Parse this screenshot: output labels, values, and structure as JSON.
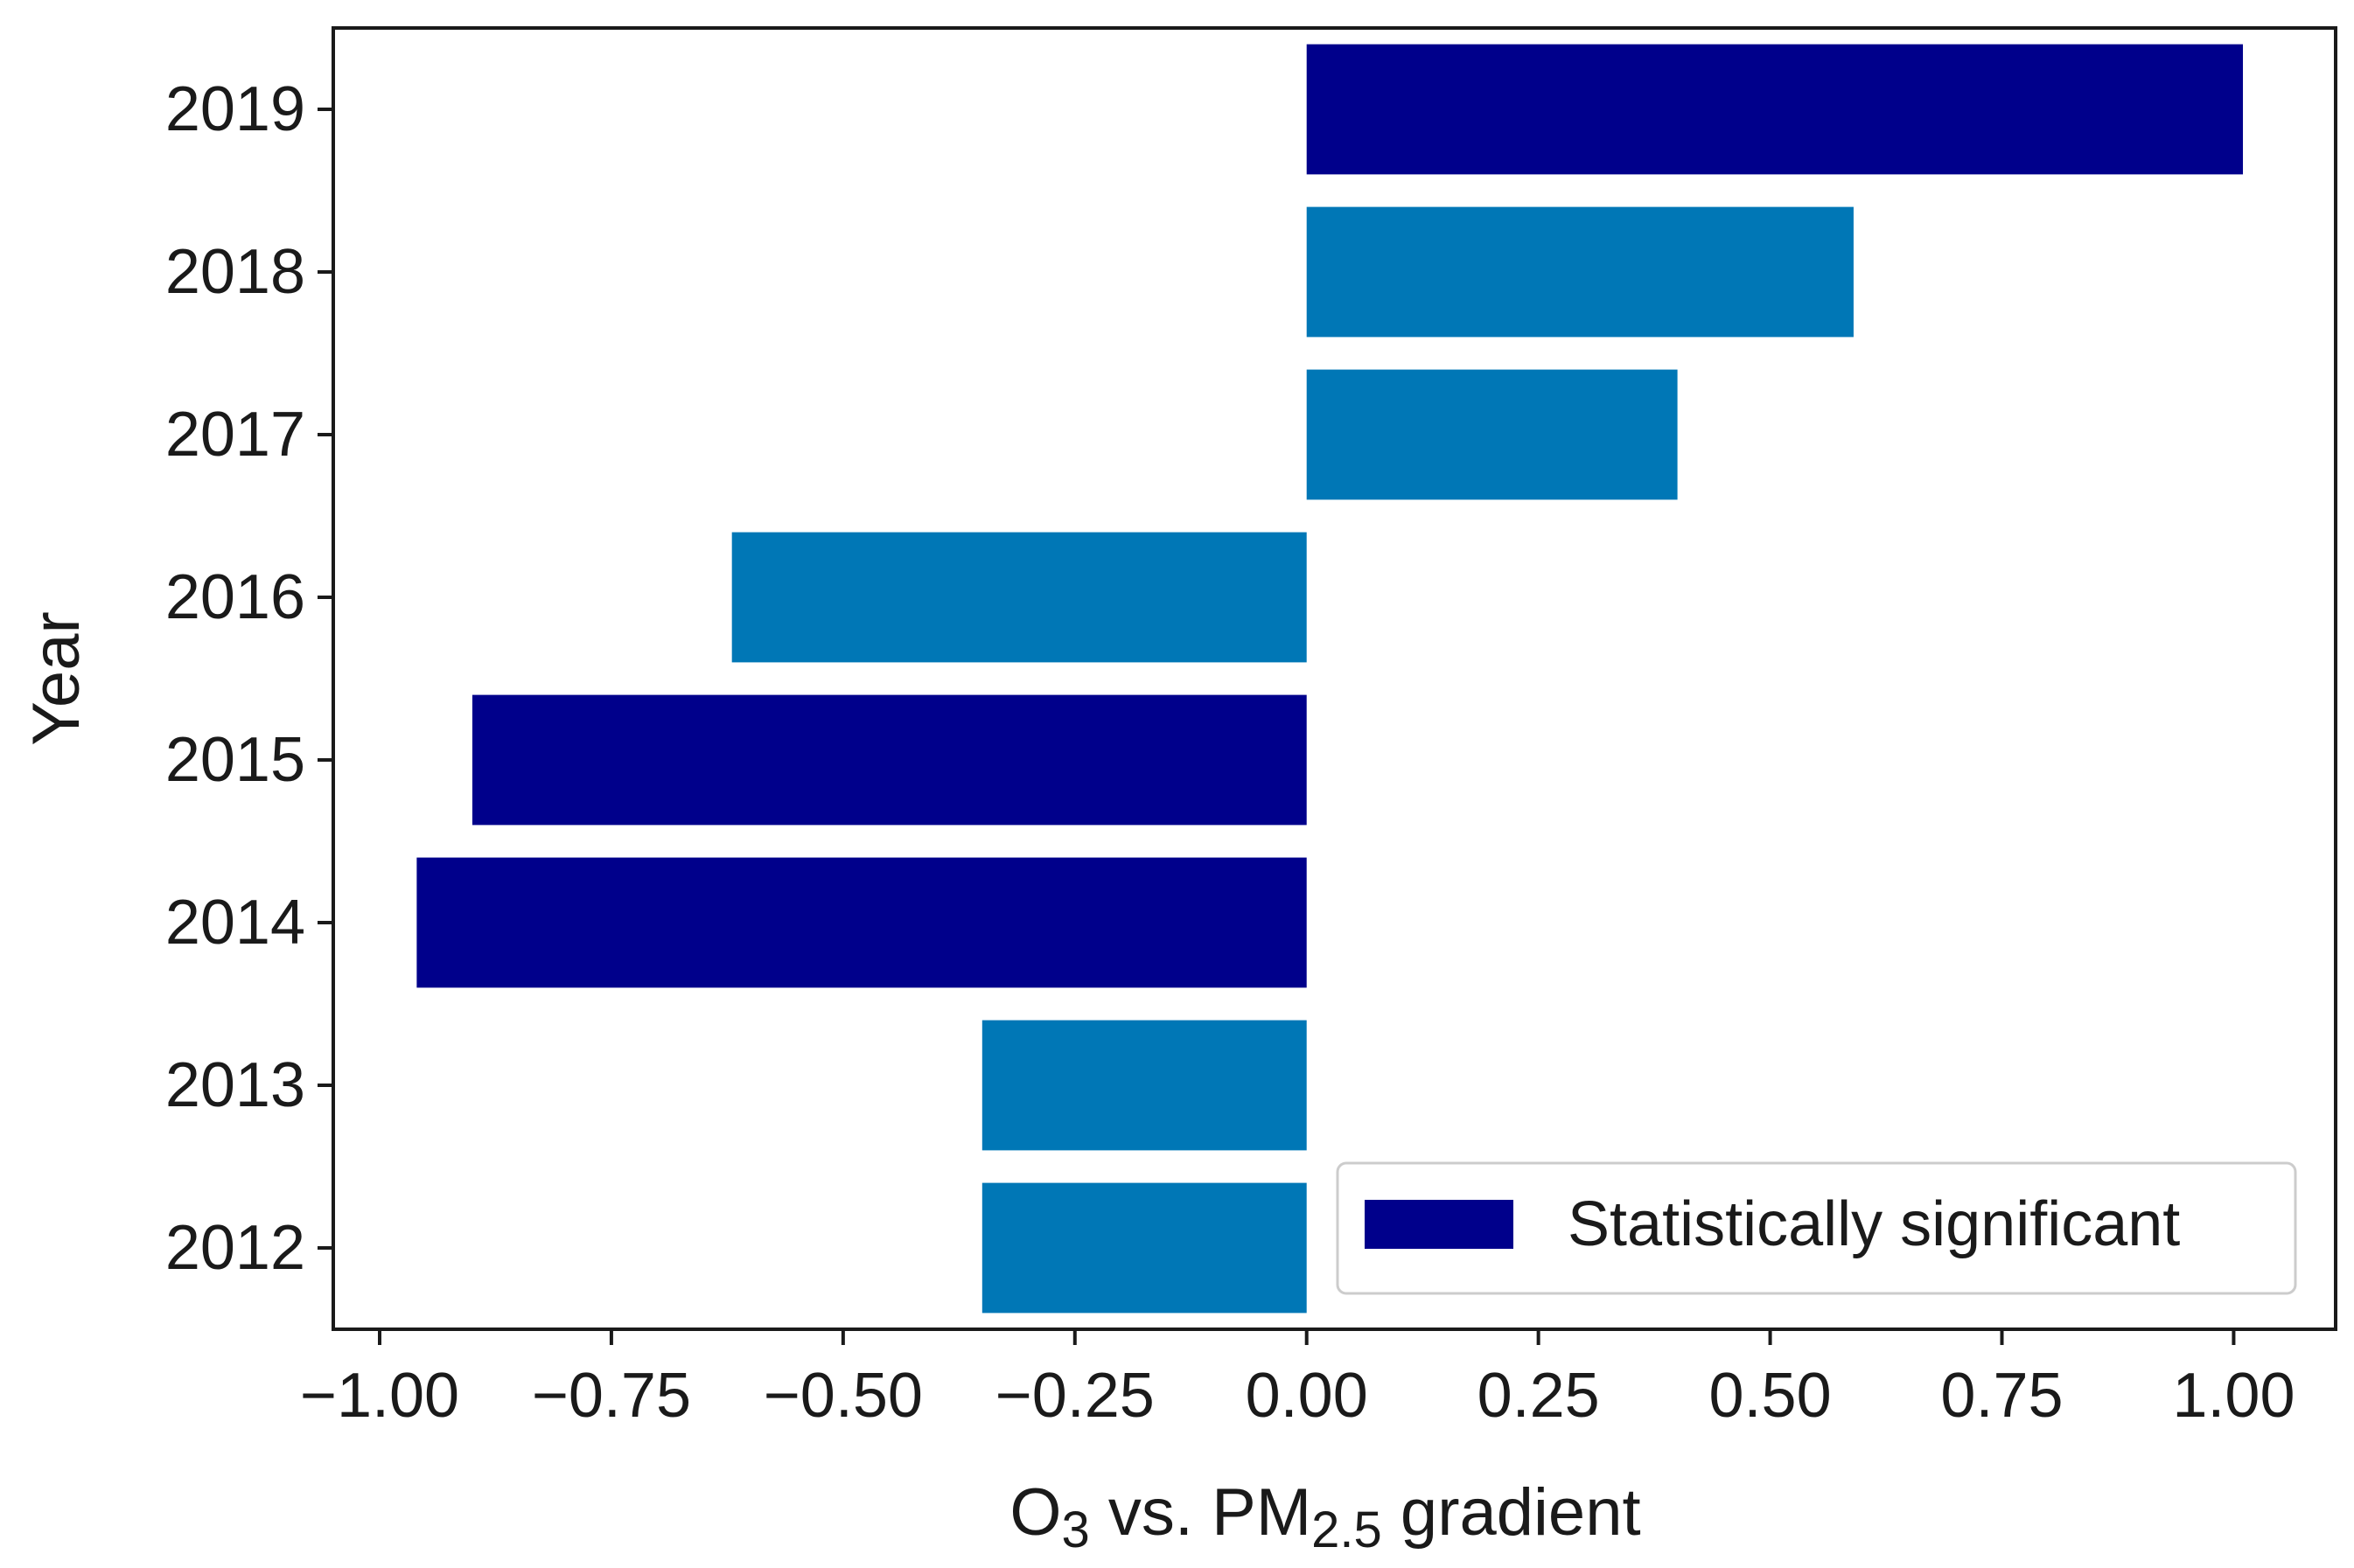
{
  "chart_data": {
    "type": "bar",
    "orientation": "horizontal",
    "categories": [
      "2012",
      "2013",
      "2014",
      "2015",
      "2016",
      "2017",
      "2018",
      "2019"
    ],
    "values": [
      -0.35,
      -0.35,
      -0.96,
      -0.9,
      -0.62,
      0.4,
      0.59,
      1.01
    ],
    "significant": [
      false,
      false,
      true,
      true,
      false,
      false,
      false,
      true
    ],
    "xlabel": {
      "main": "O",
      "sub1": "3",
      "mid": " vs. PM",
      "sub2": "2.5",
      "tail": " gradient"
    },
    "ylabel": "Year",
    "xlim": [
      -1.05,
      1.11
    ],
    "xticks": [
      -1.0,
      -0.75,
      -0.5,
      -0.25,
      0.0,
      0.25,
      0.5,
      0.75,
      1.0
    ],
    "xtick_labels": [
      "−1.00",
      "−0.75",
      "−0.50",
      "−0.25",
      "0.00",
      "0.25",
      "0.50",
      "0.75",
      "1.00"
    ],
    "legend": {
      "label": "Statistically significant",
      "placement": "lower-right"
    },
    "colors": {
      "significant": "#00008b",
      "not_significant": "#0077b6"
    }
  }
}
